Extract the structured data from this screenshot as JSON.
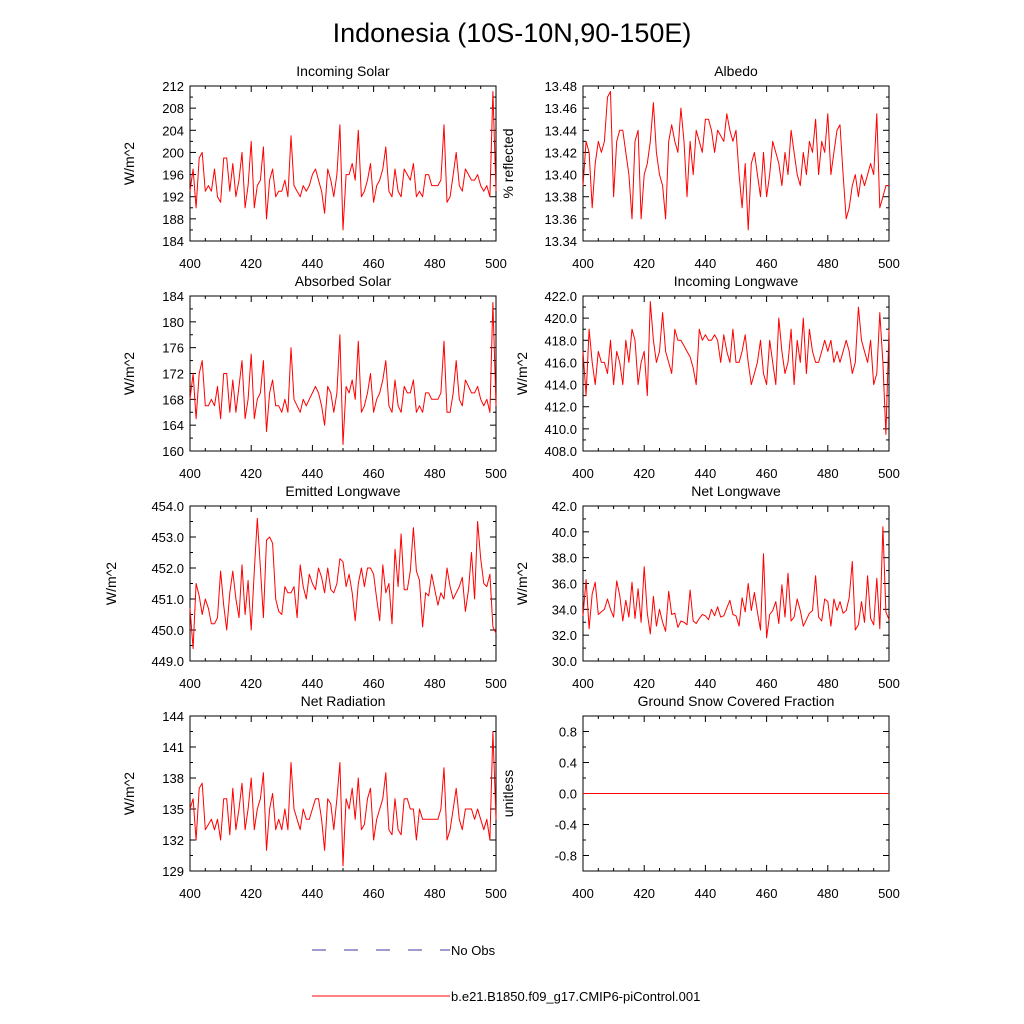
{
  "title": "Indonesia (10S-10N,90-150E)",
  "colors": {
    "model": "#ff0000",
    "obs": "#3a3aa0",
    "axis": "#000000"
  },
  "legend": {
    "obs_label": "No Obs",
    "model_label": "b.e21.B1850.f09_g17.CMIP6-piControl.001"
  },
  "chart_data": [
    {
      "type": "line",
      "title": "Incoming Solar",
      "ylabel": "W/m^2",
      "xlim": [
        400,
        500
      ],
      "ylim": [
        184,
        212
      ],
      "xticks": [
        "400",
        "420",
        "440",
        "460",
        "480",
        "500"
      ],
      "yticks": [
        "184",
        "188",
        "192",
        "196",
        "200",
        "204",
        "208",
        "212"
      ],
      "series": [
        {
          "name": "b.e21.B1850.f09_g17.CMIP6-piControl.001",
          "x_start": 400,
          "x_step": 1,
          "values": [
            193,
            197,
            190,
            199,
            200,
            193,
            194,
            193,
            197,
            192,
            191,
            199,
            199,
            193,
            198,
            192,
            195,
            200,
            190,
            194,
            202,
            190,
            194,
            195,
            201,
            188,
            195,
            197,
            192,
            193,
            193,
            195,
            192,
            203,
            194,
            193,
            192,
            194,
            193,
            194,
            196,
            197,
            195,
            193,
            189,
            197,
            195,
            192,
            196,
            205,
            186,
            196,
            196,
            198,
            195,
            204,
            192,
            193,
            195,
            198,
            191,
            194,
            195,
            197,
            201,
            193,
            192,
            197,
            193,
            192,
            197,
            196,
            195,
            198,
            192,
            193,
            192,
            196,
            196,
            194,
            194,
            194,
            195,
            205,
            191,
            192,
            196,
            200,
            194,
            193,
            197,
            196,
            195,
            195,
            196,
            194,
            193,
            194,
            192,
            211,
            193
          ]
        }
      ]
    },
    {
      "type": "line",
      "title": "Albedo",
      "ylabel": "% reflected",
      "xlim": [
        400,
        500
      ],
      "ylim": [
        13.34,
        13.48
      ],
      "xticks": [
        "400",
        "420",
        "440",
        "460",
        "480",
        "500"
      ],
      "yticks": [
        "13.34",
        "13.36",
        "13.38",
        "13.40",
        "13.42",
        "13.44",
        "13.46",
        "13.48"
      ],
      "series": [
        {
          "name": "b.e21.B1850.f09_g17.CMIP6-piControl.001",
          "x_start": 400,
          "x_step": 1,
          "values": [
            13.39,
            13.43,
            13.42,
            13.37,
            13.41,
            13.43,
            13.42,
            13.43,
            13.47,
            13.475,
            13.38,
            13.43,
            13.44,
            13.44,
            13.42,
            13.4,
            13.36,
            13.43,
            13.44,
            13.36,
            13.4,
            13.41,
            13.43,
            13.465,
            13.42,
            13.4,
            13.39,
            13.36,
            13.43,
            13.445,
            13.43,
            13.42,
            13.46,
            13.43,
            13.38,
            13.43,
            13.4,
            13.44,
            13.43,
            13.42,
            13.45,
            13.45,
            13.44,
            13.42,
            13.44,
            13.435,
            13.43,
            13.455,
            13.44,
            13.43,
            13.44,
            13.4,
            13.37,
            13.41,
            13.35,
            13.41,
            13.42,
            13.4,
            13.38,
            13.42,
            13.38,
            13.4,
            13.43,
            13.42,
            13.41,
            13.39,
            13.42,
            13.4,
            13.44,
            13.42,
            13.4,
            13.39,
            13.42,
            13.4,
            13.43,
            13.42,
            13.45,
            13.4,
            13.43,
            13.42,
            13.455,
            13.4,
            13.42,
            13.44,
            13.445,
            13.4,
            13.36,
            13.37,
            13.39,
            13.4,
            13.38,
            13.4,
            13.39,
            13.4,
            13.41,
            13.4,
            13.455,
            13.37,
            13.38,
            13.39,
            13.39
          ]
        }
      ]
    },
    {
      "type": "line",
      "title": "Absorbed Solar",
      "ylabel": "W/m^2",
      "xlim": [
        400,
        500
      ],
      "ylim": [
        160,
        184
      ],
      "xticks": [
        "400",
        "420",
        "440",
        "460",
        "480",
        "500"
      ],
      "yticks": [
        "160",
        "164",
        "168",
        "172",
        "176",
        "180",
        "184"
      ],
      "series": [
        {
          "name": "b.e21.B1850.f09_g17.CMIP6-piControl.001",
          "x_start": 400,
          "x_step": 1,
          "values": [
            168,
            172,
            165,
            172,
            174,
            167,
            167,
            168,
            167,
            170,
            165,
            172,
            172,
            166,
            171,
            166,
            170,
            174,
            165,
            168,
            175,
            165,
            168,
            169,
            174,
            163,
            169,
            171,
            167,
            167,
            166,
            168,
            166,
            176,
            168,
            167,
            166,
            168,
            167,
            168,
            169,
            170,
            169,
            167,
            164,
            170,
            169,
            166,
            169,
            178,
            161,
            170,
            169,
            171,
            168,
            177,
            166,
            167,
            169,
            172,
            166,
            168,
            169,
            171,
            174,
            167,
            166,
            171,
            167,
            166,
            170,
            169,
            169,
            171,
            166,
            167,
            166,
            169,
            169,
            168,
            168,
            168,
            169,
            177,
            166,
            166,
            169,
            174,
            168,
            167,
            171,
            170,
            169,
            169,
            170,
            168,
            167,
            168,
            166,
            183,
            167
          ]
        }
      ]
    },
    {
      "type": "line",
      "title": "Incoming Longwave",
      "ylabel": "W/m^2",
      "xlim": [
        400,
        500
      ],
      "ylim": [
        408.0,
        422.0
      ],
      "xticks": [
        "400",
        "420",
        "440",
        "460",
        "480",
        "500"
      ],
      "yticks": [
        "408.0",
        "410.0",
        "412.0",
        "414.0",
        "416.0",
        "418.0",
        "420.0",
        "422.0"
      ],
      "series": [
        {
          "name": "b.e21.B1850.f09_g17.CMIP6-piControl.001",
          "x_start": 400,
          "x_step": 1,
          "values": [
            417,
            413,
            419,
            416,
            414,
            417,
            416,
            416,
            415,
            418,
            414,
            417,
            416,
            414,
            418,
            416,
            419,
            418,
            414,
            416,
            417,
            413,
            421.5,
            418,
            416,
            417,
            420.5,
            417,
            416,
            415,
            419,
            418,
            418,
            417.5,
            417,
            416.5,
            415.5,
            414,
            419,
            418,
            418.5,
            418,
            418,
            418.5,
            418,
            416,
            418.5,
            417,
            416,
            419,
            416,
            416,
            417,
            418.5,
            416,
            414,
            415,
            416,
            418,
            415,
            414,
            418,
            416,
            414,
            420,
            417,
            415,
            416,
            419,
            414,
            418,
            416,
            420,
            415,
            419,
            417,
            416,
            416,
            417,
            418,
            417,
            418,
            416,
            417,
            416,
            417,
            418,
            417,
            415,
            416,
            421,
            418,
            417,
            416,
            418,
            414,
            415,
            420.5,
            416,
            409.5,
            419
          ]
        }
      ]
    },
    {
      "type": "line",
      "title": "Emitted Longwave",
      "ylabel": "W/m^2",
      "xlim": [
        400,
        500
      ],
      "ylim": [
        449.0,
        454.0
      ],
      "xticks": [
        "400",
        "420",
        "440",
        "460",
        "480",
        "500"
      ],
      "yticks": [
        "449.0",
        "450.0",
        "451.0",
        "452.0",
        "453.0",
        "454.0"
      ],
      "series": [
        {
          "name": "b.e21.B1850.f09_g17.CMIP6-piControl.001",
          "x_start": 400,
          "x_step": 1,
          "values": [
            450.7,
            449.4,
            451.5,
            451.1,
            450.5,
            451.0,
            450.7,
            450.2,
            450.2,
            450.4,
            451.9,
            450.8,
            450.0,
            451.2,
            451.9,
            451.0,
            450.4,
            452.1,
            450.5,
            451.6,
            450.0,
            451.9,
            453.6,
            452.0,
            450.4,
            452.9,
            453.0,
            452.8,
            451.0,
            450.6,
            450.5,
            451.4,
            451.2,
            451.2,
            451.4,
            450.4,
            452.1,
            451.4,
            451.0,
            451.8,
            451.5,
            451.3,
            452.0,
            451.7,
            451.2,
            452.0,
            451.3,
            451.2,
            451.5,
            452.3,
            452.2,
            451.4,
            451.8,
            451.2,
            450.3,
            451.5,
            452.0,
            451.4,
            452.0,
            452.0,
            451.8,
            451.0,
            450.3,
            452.1,
            451.2,
            451.5,
            450.2,
            452.6,
            451.4,
            453.1,
            451.3,
            451.3,
            451.9,
            453.3,
            451.9,
            451.6,
            450.1,
            451.2,
            451.1,
            451.8,
            451.3,
            450.8,
            451.2,
            451.0,
            452.0,
            451.4,
            451.0,
            451.2,
            451.4,
            451.7,
            450.6,
            451.3,
            452.5,
            451.0,
            453.5,
            452.3,
            451.5,
            451.4,
            451.8,
            450.1,
            449.9
          ]
        }
      ]
    },
    {
      "type": "line",
      "title": "Net Longwave",
      "ylabel": "W/m^2",
      "xlim": [
        400,
        500
      ],
      "ylim": [
        30.0,
        42.0
      ],
      "xticks": [
        "400",
        "420",
        "440",
        "460",
        "480",
        "500"
      ],
      "yticks": [
        "30.0",
        "32.0",
        "34.0",
        "36.0",
        "38.0",
        "40.0",
        "42.0"
      ],
      "series": [
        {
          "name": "b.e21.B1850.f09_g17.CMIP6-piControl.001",
          "x_start": 400,
          "x_step": 1,
          "values": [
            33.5,
            36.3,
            32.5,
            35.2,
            36.1,
            33.6,
            33.8,
            34.0,
            34.8,
            34.0,
            33.4,
            36.2,
            35.1,
            33.1,
            34.7,
            33.4,
            36.1,
            33.3,
            35.6,
            33.0,
            37.3,
            33.7,
            32.1,
            35.0,
            32.7,
            34.0,
            33.0,
            32.3,
            35.4,
            33.6,
            33.7,
            32.6,
            33.1,
            33.0,
            32.8,
            35.5,
            33.1,
            32.9,
            33.3,
            33.6,
            33.5,
            33.2,
            34.0,
            33.5,
            34.2,
            33.4,
            33.5,
            34.1,
            34.7,
            33.6,
            33.5,
            32.7,
            34.9,
            33.8,
            36.0,
            33.9,
            35.3,
            33.8,
            32.4,
            38.3,
            31.8,
            33.6,
            33.9,
            34.6,
            32.9,
            35.9,
            33.4,
            36.8,
            33.1,
            33.4,
            34.8,
            33.9,
            32.7,
            33.2,
            33.7,
            33.9,
            36.6,
            33.4,
            33.1,
            34.8,
            34.6,
            32.7,
            34.8,
            33.9,
            34.6,
            33.7,
            33.9,
            34.9,
            37.7,
            32.4,
            32.8,
            34.6,
            33.0,
            36.6,
            33.3,
            32.8,
            36.4,
            32.5,
            40.4,
            33.8,
            33.2
          ]
        }
      ]
    },
    {
      "type": "line",
      "title": "Net Radiation",
      "ylabel": "W/m^2",
      "xlim": [
        400,
        500
      ],
      "ylim": [
        129,
        144
      ],
      "xticks": [
        "400",
        "420",
        "440",
        "460",
        "480",
        "500"
      ],
      "yticks": [
        "129",
        "132",
        "135",
        "138",
        "141",
        "144"
      ],
      "series": [
        {
          "name": "b.e21.B1850.f09_g17.CMIP6-piControl.001",
          "x_start": 400,
          "x_step": 1,
          "values": [
            135,
            136,
            132,
            137,
            137.5,
            133,
            133.5,
            134,
            133,
            134,
            132,
            136,
            136,
            132.5,
            137,
            133,
            135,
            137.5,
            133,
            135,
            138,
            133,
            135,
            136,
            138.5,
            131,
            135,
            136.5,
            133,
            134,
            133,
            135,
            133,
            139.5,
            135,
            134,
            133,
            135,
            134,
            134,
            135,
            136,
            136,
            134,
            131,
            136,
            135.5,
            133,
            136,
            139.5,
            129.5,
            136,
            135,
            137,
            134,
            138,
            133,
            133.5,
            136,
            137,
            132,
            134,
            135,
            136,
            138.5,
            133,
            132.5,
            136,
            133,
            132.5,
            136,
            136,
            135,
            135,
            132,
            135,
            134,
            134,
            134,
            134,
            134,
            134,
            135,
            139,
            132,
            133,
            135,
            137,
            134,
            133,
            135,
            135,
            135,
            134,
            135,
            134,
            133,
            134,
            132,
            142.5,
            134
          ]
        }
      ]
    },
    {
      "type": "line",
      "title": "Ground Snow Covered Fraction",
      "ylabel": "unitless",
      "xlim": [
        400,
        500
      ],
      "ylim": [
        -1.0,
        1.0
      ],
      "xticks": [
        "400",
        "420",
        "440",
        "460",
        "480",
        "500"
      ],
      "yticks": [
        "-0.8",
        "-0.4",
        "0.0",
        "0.4",
        "0.8"
      ],
      "ytick_values": [
        -0.8,
        -0.4,
        0.0,
        0.4,
        0.8
      ],
      "series": [
        {
          "name": "b.e21.B1850.f09_g17.CMIP6-piControl.001",
          "x_start": 400,
          "x_step": 100,
          "values": [
            0.0,
            0.0
          ]
        }
      ]
    }
  ]
}
